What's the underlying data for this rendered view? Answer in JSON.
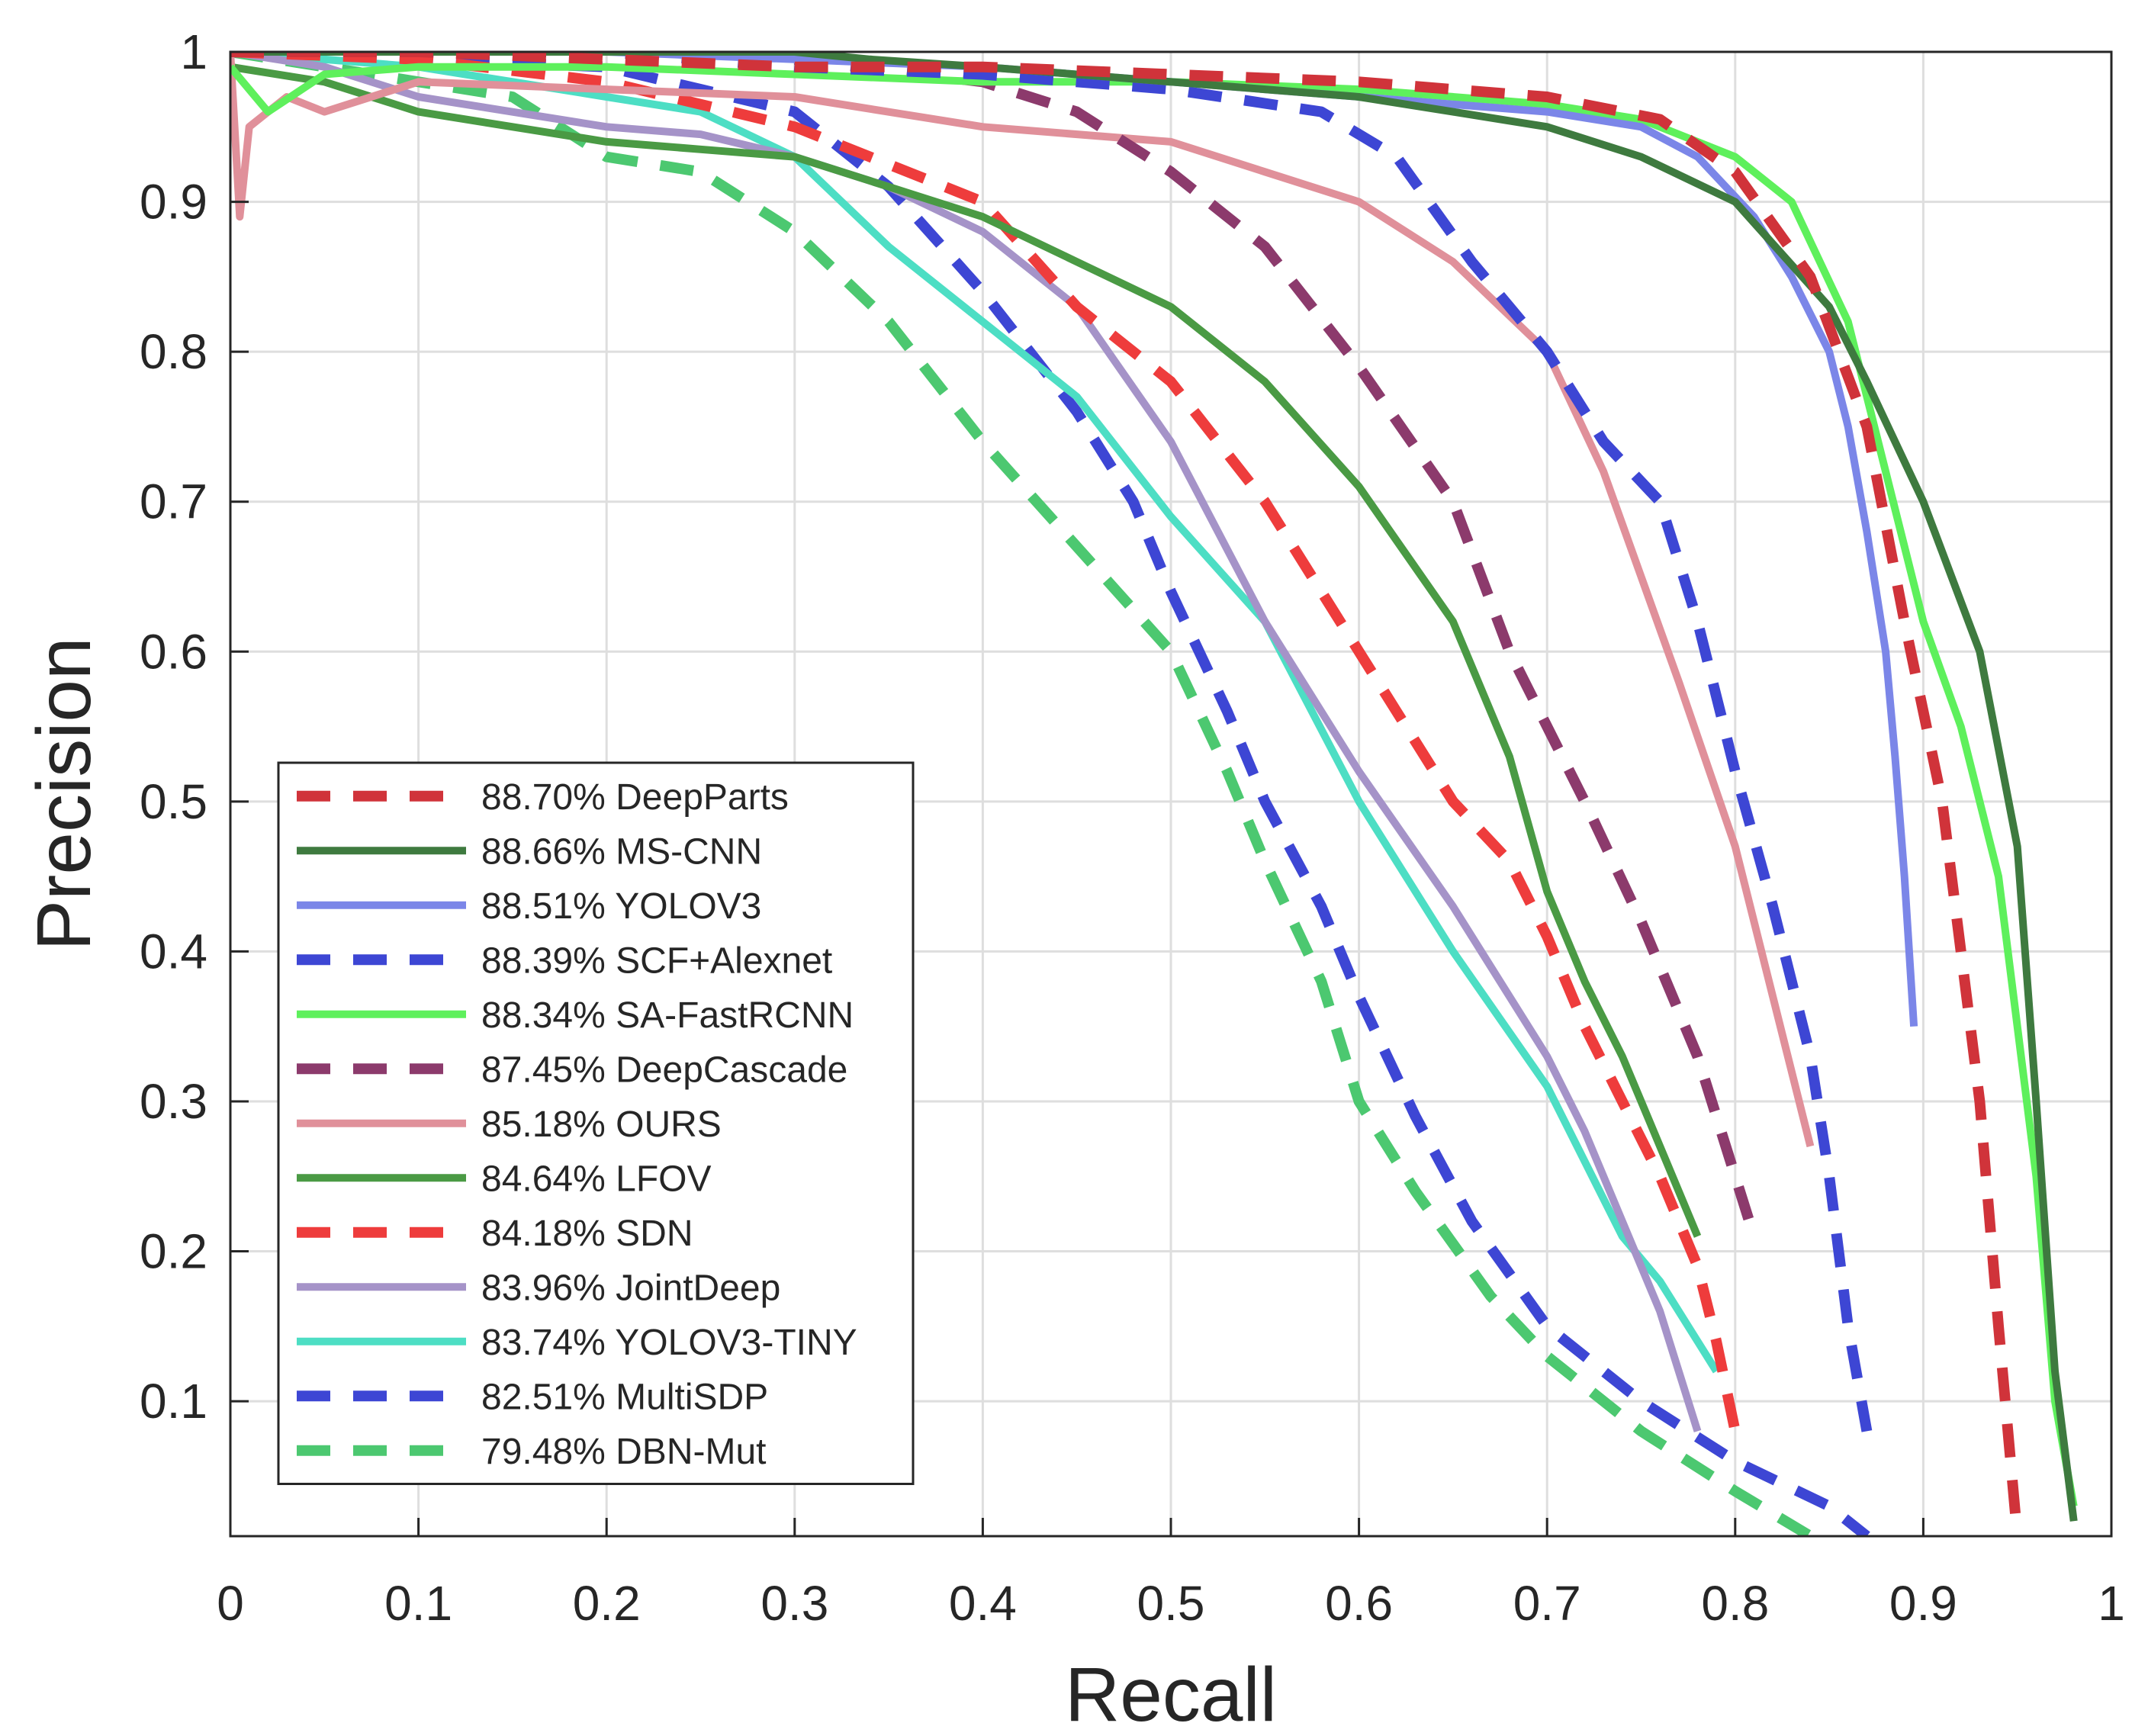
{
  "chart_data": {
    "type": "line",
    "title": "",
    "xlabel": "Recall",
    "ylabel": "Precision",
    "xlim": [
      0,
      1
    ],
    "ylim": [
      0.01,
      1
    ],
    "x_ticks": [
      "0",
      "0.1",
      "0.2",
      "0.3",
      "0.4",
      "0.5",
      "0.6",
      "0.7",
      "0.8",
      "0.9",
      "1"
    ],
    "y_ticks": [
      "0.1",
      "0.2",
      "0.3",
      "0.4",
      "0.5",
      "0.6",
      "0.7",
      "0.8",
      "0.9",
      "1"
    ],
    "grid": true,
    "legend_position": "bottom-left",
    "series": [
      {
        "name": "DeepParts",
        "label": "88.70% DeepParts",
        "ap": "88.70%",
        "color": "#d0333a",
        "style": "dashed",
        "x": [
          0.0,
          0.1,
          0.2,
          0.3,
          0.4,
          0.5,
          0.6,
          0.7,
          0.76,
          0.8,
          0.84,
          0.87,
          0.89,
          0.91,
          0.93,
          0.94,
          0.95
        ],
        "y": [
          1.0,
          1.0,
          0.995,
          0.99,
          0.99,
          0.985,
          0.98,
          0.97,
          0.955,
          0.92,
          0.85,
          0.75,
          0.62,
          0.5,
          0.3,
          0.15,
          0.01
        ]
      },
      {
        "name": "MS-CNN",
        "label": "88.66% MS-CNN",
        "ap": "88.66%",
        "color": "#3e7a3f",
        "style": "solid",
        "x": [
          0.0,
          0.1,
          0.2,
          0.3,
          0.34,
          0.4,
          0.5,
          0.6,
          0.65,
          0.7,
          0.75,
          0.8,
          0.85,
          0.87,
          0.9,
          0.93,
          0.95,
          0.96,
          0.97,
          0.98
        ],
        "y": [
          1.0,
          1.0,
          1.0,
          1.0,
          0.995,
          0.99,
          0.98,
          0.97,
          0.96,
          0.95,
          0.93,
          0.9,
          0.83,
          0.78,
          0.7,
          0.6,
          0.47,
          0.3,
          0.12,
          0.02
        ]
      },
      {
        "name": "YOLOV3",
        "label": "88.51% YOLOV3",
        "ap": "88.51%",
        "color": "#7b86e8",
        "style": "solid",
        "x": [
          0.0,
          0.1,
          0.2,
          0.3,
          0.4,
          0.5,
          0.6,
          0.7,
          0.75,
          0.78,
          0.81,
          0.83,
          0.85,
          0.86,
          0.87,
          0.88,
          0.885,
          0.89,
          0.895
        ],
        "y": [
          1.0,
          1.0,
          1.0,
          0.995,
          0.99,
          0.98,
          0.97,
          0.96,
          0.95,
          0.93,
          0.89,
          0.85,
          0.8,
          0.75,
          0.68,
          0.6,
          0.53,
          0.45,
          0.35
        ]
      },
      {
        "name": "SCF+Alexnet",
        "label": "88.39% SCF+Alexnet",
        "ap": "88.39%",
        "color": "#3d46d4",
        "style": "dashed",
        "x": [
          0.0,
          0.1,
          0.2,
          0.3,
          0.4,
          0.5,
          0.58,
          0.62,
          0.66,
          0.7,
          0.73,
          0.76,
          0.78,
          0.8,
          0.82,
          0.84,
          0.85,
          0.86,
          0.87
        ],
        "y": [
          1.0,
          1.0,
          1.0,
          0.99,
          0.985,
          0.975,
          0.96,
          0.93,
          0.86,
          0.8,
          0.74,
          0.7,
          0.62,
          0.52,
          0.43,
          0.33,
          0.25,
          0.15,
          0.08
        ]
      },
      {
        "name": "SA-FastRCNN",
        "label": "88.34% SA-FastRCNN",
        "ap": "88.34%",
        "color": "#5ef05c",
        "style": "solid",
        "x": [
          0.0,
          0.02,
          0.05,
          0.1,
          0.2,
          0.3,
          0.4,
          0.5,
          0.6,
          0.7,
          0.75,
          0.8,
          0.83,
          0.86,
          0.88,
          0.9,
          0.92,
          0.94,
          0.96,
          0.97,
          0.98
        ],
        "y": [
          0.99,
          0.96,
          0.985,
          0.99,
          0.99,
          0.985,
          0.98,
          0.98,
          0.975,
          0.965,
          0.955,
          0.93,
          0.9,
          0.82,
          0.72,
          0.62,
          0.55,
          0.45,
          0.25,
          0.1,
          0.03
        ]
      },
      {
        "name": "DeepCascade",
        "label": "87.45% DeepCascade",
        "ap": "87.45%",
        "color": "#8c3a6c",
        "style": "dashed",
        "x": [
          0.0,
          0.1,
          0.2,
          0.3,
          0.4,
          0.45,
          0.5,
          0.55,
          0.6,
          0.65,
          0.68,
          0.72,
          0.75,
          0.78,
          0.8,
          0.81
        ],
        "y": [
          1.0,
          1.0,
          1.0,
          0.995,
          0.98,
          0.96,
          0.92,
          0.87,
          0.79,
          0.7,
          0.6,
          0.5,
          0.42,
          0.33,
          0.25,
          0.21
        ]
      },
      {
        "name": "OURS",
        "label": "85.18% OURS",
        "ap": "85.18%",
        "color": "#e0909a",
        "style": "solid",
        "x": [
          0.0,
          0.005,
          0.01,
          0.03,
          0.05,
          0.1,
          0.2,
          0.3,
          0.4,
          0.5,
          0.55,
          0.6,
          0.65,
          0.7,
          0.73,
          0.75,
          0.77,
          0.8,
          0.82,
          0.84
        ],
        "y": [
          1.0,
          0.89,
          0.95,
          0.97,
          0.96,
          0.98,
          0.975,
          0.97,
          0.95,
          0.94,
          0.92,
          0.9,
          0.86,
          0.8,
          0.72,
          0.65,
          0.58,
          0.47,
          0.37,
          0.27
        ]
      },
      {
        "name": "LFOV",
        "label": "84.64% LFOV",
        "ap": "84.64%",
        "color": "#4a9a44",
        "style": "solid",
        "x": [
          0.0,
          0.05,
          0.1,
          0.15,
          0.2,
          0.25,
          0.3,
          0.35,
          0.4,
          0.45,
          0.5,
          0.55,
          0.6,
          0.65,
          0.68,
          0.7,
          0.72,
          0.74,
          0.76,
          0.78
        ],
        "y": [
          0.99,
          0.98,
          0.96,
          0.95,
          0.94,
          0.935,
          0.93,
          0.91,
          0.89,
          0.86,
          0.83,
          0.78,
          0.71,
          0.62,
          0.53,
          0.44,
          0.38,
          0.33,
          0.27,
          0.21
        ]
      },
      {
        "name": "SDN",
        "label": "84.18% SDN",
        "ap": "84.18%",
        "color": "#ee3c3c",
        "style": "dashed",
        "x": [
          0.0,
          0.1,
          0.2,
          0.3,
          0.4,
          0.45,
          0.5,
          0.55,
          0.6,
          0.65,
          0.68,
          0.7,
          0.72,
          0.74,
          0.76,
          0.78,
          0.79,
          0.8
        ],
        "y": [
          1.0,
          0.995,
          0.98,
          0.95,
          0.9,
          0.83,
          0.78,
          0.7,
          0.6,
          0.5,
          0.46,
          0.41,
          0.35,
          0.3,
          0.25,
          0.19,
          0.14,
          0.08
        ]
      },
      {
        "name": "JointDeep",
        "label": "83.96% JointDeep",
        "ap": "83.96%",
        "color": "#a593c8",
        "style": "solid",
        "x": [
          0.0,
          0.05,
          0.1,
          0.2,
          0.25,
          0.3,
          0.35,
          0.4,
          0.45,
          0.5,
          0.55,
          0.6,
          0.65,
          0.7,
          0.72,
          0.74,
          0.76,
          0.77,
          0.78
        ],
        "y": [
          1.0,
          0.99,
          0.97,
          0.95,
          0.945,
          0.93,
          0.91,
          0.88,
          0.83,
          0.74,
          0.62,
          0.52,
          0.43,
          0.33,
          0.28,
          0.22,
          0.16,
          0.12,
          0.08
        ]
      },
      {
        "name": "YOLOV3-TINY",
        "label": "83.74% YOLOV3-TINY",
        "ap": "83.74%",
        "color": "#4ddec4",
        "style": "solid",
        "x": [
          0.0,
          0.1,
          0.2,
          0.25,
          0.3,
          0.35,
          0.4,
          0.45,
          0.5,
          0.55,
          0.6,
          0.65,
          0.7,
          0.72,
          0.74,
          0.76,
          0.78,
          0.79
        ],
        "y": [
          1.0,
          0.99,
          0.97,
          0.96,
          0.93,
          0.87,
          0.82,
          0.77,
          0.69,
          0.62,
          0.5,
          0.4,
          0.31,
          0.26,
          0.21,
          0.18,
          0.14,
          0.12
        ]
      },
      {
        "name": "MultiSDP",
        "label": "82.51% MultiSDP",
        "ap": "82.51%",
        "color": "#3d46d4",
        "style": "dashed",
        "x": [
          0.0,
          0.1,
          0.2,
          0.25,
          0.3,
          0.35,
          0.4,
          0.45,
          0.48,
          0.5,
          0.53,
          0.55,
          0.58,
          0.6,
          0.63,
          0.66,
          0.7,
          0.75,
          0.8,
          0.85,
          0.87
        ],
        "y": [
          1.0,
          0.995,
          0.99,
          0.975,
          0.96,
          0.91,
          0.84,
          0.76,
          0.7,
          0.64,
          0.56,
          0.5,
          0.43,
          0.37,
          0.29,
          0.22,
          0.15,
          0.1,
          0.06,
          0.03,
          0.01
        ]
      },
      {
        "name": "DBN-Mut",
        "label": "79.48% DBN-Mut",
        "ap": "79.48%",
        "color": "#4cc870",
        "style": "dashed",
        "x": [
          0.0,
          0.05,
          0.1,
          0.15,
          0.2,
          0.25,
          0.3,
          0.35,
          0.4,
          0.45,
          0.5,
          0.53,
          0.55,
          0.58,
          0.6,
          0.63,
          0.67,
          0.7,
          0.75,
          0.8,
          0.84
        ],
        "y": [
          1.0,
          0.99,
          0.98,
          0.97,
          0.93,
          0.92,
          0.88,
          0.82,
          0.74,
          0.67,
          0.6,
          0.52,
          0.46,
          0.38,
          0.3,
          0.24,
          0.17,
          0.13,
          0.08,
          0.04,
          0.01
        ]
      }
    ]
  }
}
